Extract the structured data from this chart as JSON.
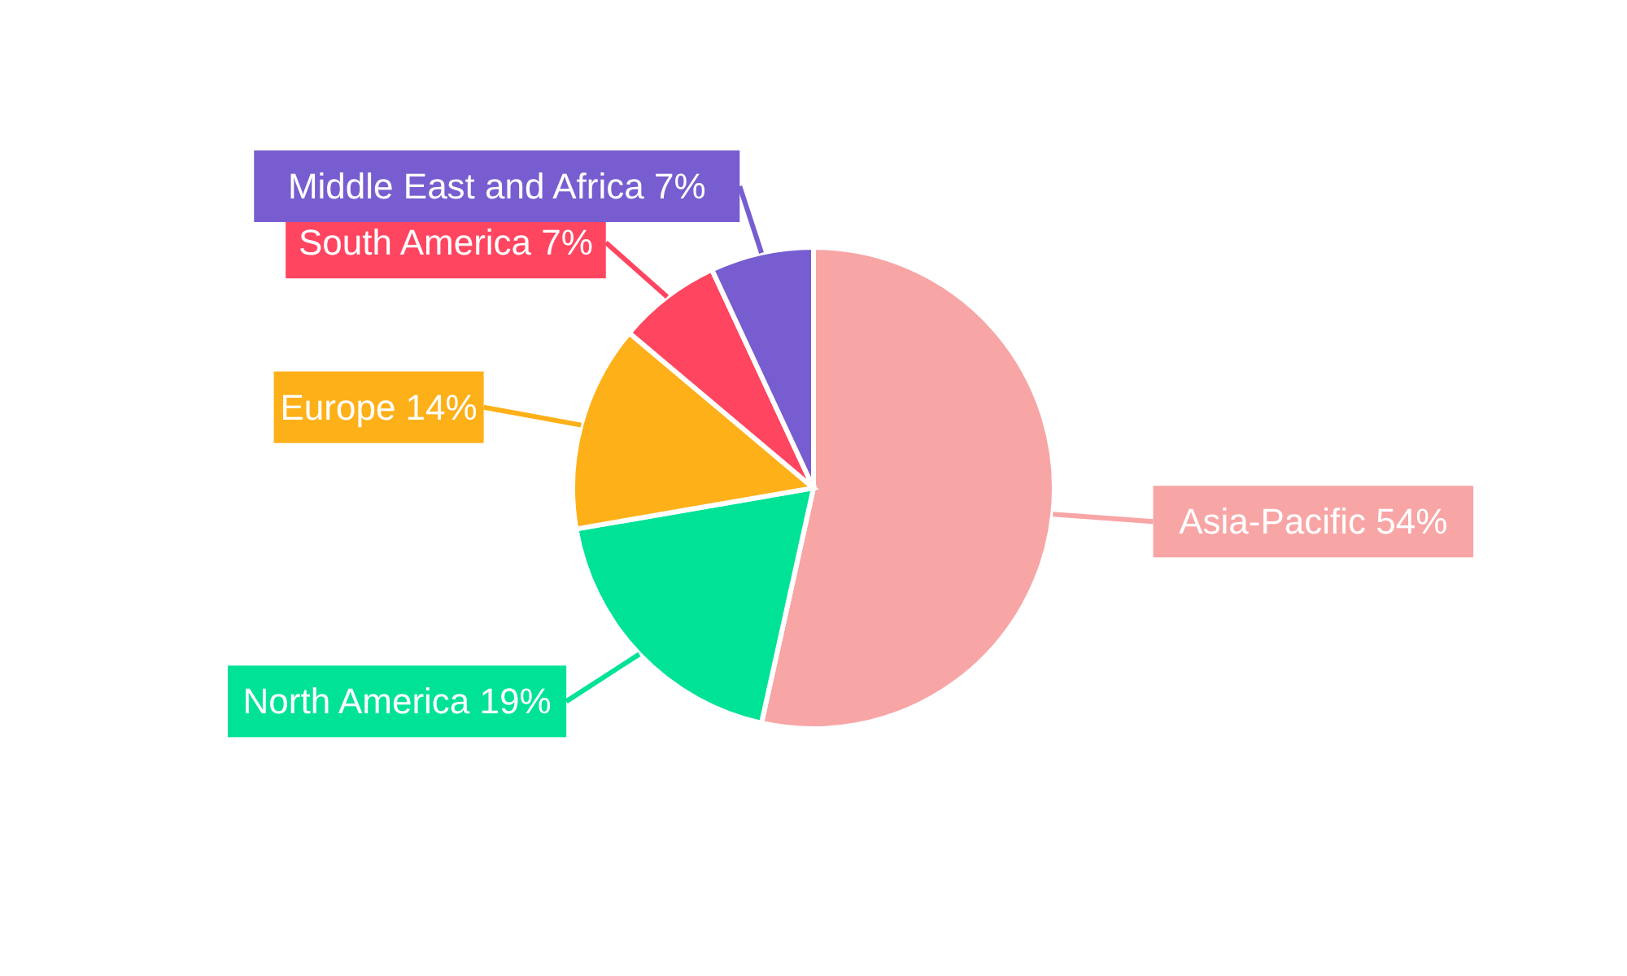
{
  "chart_data": {
    "type": "pie",
    "categories": [
      "Asia-Pacific",
      "North America",
      "Europe",
      "South America",
      "Middle East and Africa"
    ],
    "values": [
      54,
      19,
      14,
      7,
      7
    ],
    "colors": [
      "#f8a5a6",
      "#00e396",
      "#feb019",
      "#ff4560",
      "#775dd0"
    ],
    "value_labels": [
      "54%",
      "19%",
      "14%",
      "7%",
      "7%"
    ],
    "legend": false
  }
}
